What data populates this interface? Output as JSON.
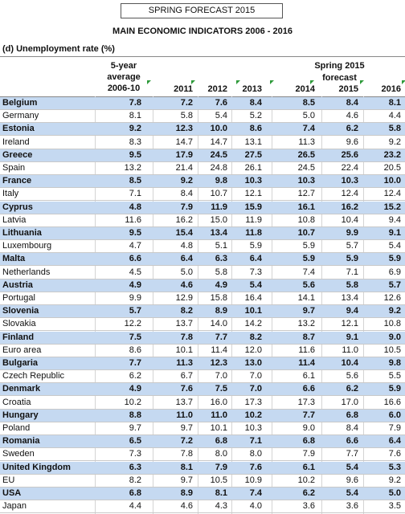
{
  "header": {
    "title": "SPRING FORECAST 2015",
    "subtitle": "MAIN ECONOMIC INDICATORS 2006 - 2016"
  },
  "table": {
    "caption": "(d) Unemployment rate (%)",
    "avg_header": [
      "5-year",
      "average",
      "2006-10"
    ],
    "forecast_header": [
      "Spring 2015",
      "forecast"
    ],
    "years": [
      "2011",
      "2012",
      "2013",
      "2014",
      "2015",
      "2016"
    ],
    "rows": [
      {
        "cells": [
          "Belgium",
          "7.8",
          "7.2",
          "7.6",
          "8.4",
          "8.5",
          "8.4",
          "8.1"
        ],
        "highlight": true
      },
      {
        "cells": [
          "Germany",
          "8.1",
          "5.8",
          "5.4",
          "5.2",
          "5.0",
          "4.6",
          "4.4"
        ],
        "highlight": false
      },
      {
        "cells": [
          "Estonia",
          "9.2",
          "12.3",
          "10.0",
          "8.6",
          "7.4",
          "6.2",
          "5.8"
        ],
        "highlight": true
      },
      {
        "cells": [
          "Ireland",
          "8.3",
          "14.7",
          "14.7",
          "13.1",
          "11.3",
          "9.6",
          "9.2"
        ],
        "highlight": false
      },
      {
        "cells": [
          "Greece",
          "9.5",
          "17.9",
          "24.5",
          "27.5",
          "26.5",
          "25.6",
          "23.2"
        ],
        "highlight": true
      },
      {
        "cells": [
          "Spain",
          "13.2",
          "21.4",
          "24.8",
          "26.1",
          "24.5",
          "22.4",
          "20.5"
        ],
        "highlight": false
      },
      {
        "cells": [
          "France",
          "8.5",
          "9.2",
          "9.8",
          "10.3",
          "10.3",
          "10.3",
          "10.0"
        ],
        "highlight": true
      },
      {
        "cells": [
          "Italy",
          "7.1",
          "8.4",
          "10.7",
          "12.1",
          "12.7",
          "12.4",
          "12.4"
        ],
        "highlight": false
      },
      {
        "cells": [
          "Cyprus",
          "4.8",
          "7.9",
          "11.9",
          "15.9",
          "16.1",
          "16.2",
          "15.2"
        ],
        "highlight": true
      },
      {
        "cells": [
          "Latvia",
          "11.6",
          "16.2",
          "15.0",
          "11.9",
          "10.8",
          "10.4",
          "9.4"
        ],
        "highlight": false
      },
      {
        "cells": [
          "Lithuania",
          "9.5",
          "15.4",
          "13.4",
          "11.8",
          "10.7",
          "9.9",
          "9.1"
        ],
        "highlight": true
      },
      {
        "cells": [
          "Luxembourg",
          "4.7",
          "4.8",
          "5.1",
          "5.9",
          "5.9",
          "5.7",
          "5.4"
        ],
        "highlight": false
      },
      {
        "cells": [
          "Malta",
          "6.6",
          "6.4",
          "6.3",
          "6.4",
          "5.9",
          "5.9",
          "5.9"
        ],
        "highlight": true
      },
      {
        "cells": [
          "Netherlands",
          "4.5",
          "5.0",
          "5.8",
          "7.3",
          "7.4",
          "7.1",
          "6.9"
        ],
        "highlight": false
      },
      {
        "cells": [
          "Austria",
          "4.9",
          "4.6",
          "4.9",
          "5.4",
          "5.6",
          "5.8",
          "5.7"
        ],
        "highlight": true
      },
      {
        "cells": [
          "Portugal",
          "9.9",
          "12.9",
          "15.8",
          "16.4",
          "14.1",
          "13.4",
          "12.6"
        ],
        "highlight": false
      },
      {
        "cells": [
          "Slovenia",
          "5.7",
          "8.2",
          "8.9",
          "10.1",
          "9.7",
          "9.4",
          "9.2"
        ],
        "highlight": true
      },
      {
        "cells": [
          "Slovakia",
          "12.2",
          "13.7",
          "14.0",
          "14.2",
          "13.2",
          "12.1",
          "10.8"
        ],
        "highlight": false
      },
      {
        "cells": [
          "Finland",
          "7.5",
          "7.8",
          "7.7",
          "8.2",
          "8.7",
          "9.1",
          "9.0"
        ],
        "highlight": true
      },
      {
        "cells": [
          "Euro area",
          "8.6",
          "10.1",
          "11.4",
          "12.0",
          "11.6",
          "11.0",
          "10.5"
        ],
        "highlight": false
      },
      {
        "cells": [
          "Bulgaria",
          "7.7",
          "11.3",
          "12.3",
          "13.0",
          "11.4",
          "10.4",
          "9.8"
        ],
        "highlight": true
      },
      {
        "cells": [
          "Czech Republic",
          "6.2",
          "6.7",
          "7.0",
          "7.0",
          "6.1",
          "5.6",
          "5.5"
        ],
        "highlight": false
      },
      {
        "cells": [
          "Denmark",
          "4.9",
          "7.6",
          "7.5",
          "7.0",
          "6.6",
          "6.2",
          "5.9"
        ],
        "highlight": true
      },
      {
        "cells": [
          "Croatia",
          "10.2",
          "13.7",
          "16.0",
          "17.3",
          "17.3",
          "17.0",
          "16.6"
        ],
        "highlight": false
      },
      {
        "cells": [
          "Hungary",
          "8.8",
          "11.0",
          "11.0",
          "10.2",
          "7.7",
          "6.8",
          "6.0"
        ],
        "highlight": true
      },
      {
        "cells": [
          "Poland",
          "9.7",
          "9.7",
          "10.1",
          "10.3",
          "9.0",
          "8.4",
          "7.9"
        ],
        "highlight": false
      },
      {
        "cells": [
          "Romania",
          "6.5",
          "7.2",
          "6.8",
          "7.1",
          "6.8",
          "6.6",
          "6.4"
        ],
        "highlight": true
      },
      {
        "cells": [
          "Sweden",
          "7.3",
          "7.8",
          "8.0",
          "8.0",
          "7.9",
          "7.7",
          "7.6"
        ],
        "highlight": false
      },
      {
        "cells": [
          "United Kingdom",
          "6.3",
          "8.1",
          "7.9",
          "7.6",
          "6.1",
          "5.4",
          "5.3"
        ],
        "highlight": true
      },
      {
        "cells": [
          "EU",
          "8.2",
          "9.7",
          "10.5",
          "10.9",
          "10.2",
          "9.6",
          "9.2"
        ],
        "highlight": false
      },
      {
        "cells": [
          "USA",
          "6.8",
          "8.9",
          "8.1",
          "7.4",
          "6.2",
          "5.4",
          "5.0"
        ],
        "highlight": true
      },
      {
        "cells": [
          "Japan",
          "4.4",
          "4.6",
          "4.3",
          "4.0",
          "3.6",
          "3.6",
          "3.5"
        ],
        "highlight": false
      }
    ]
  }
}
